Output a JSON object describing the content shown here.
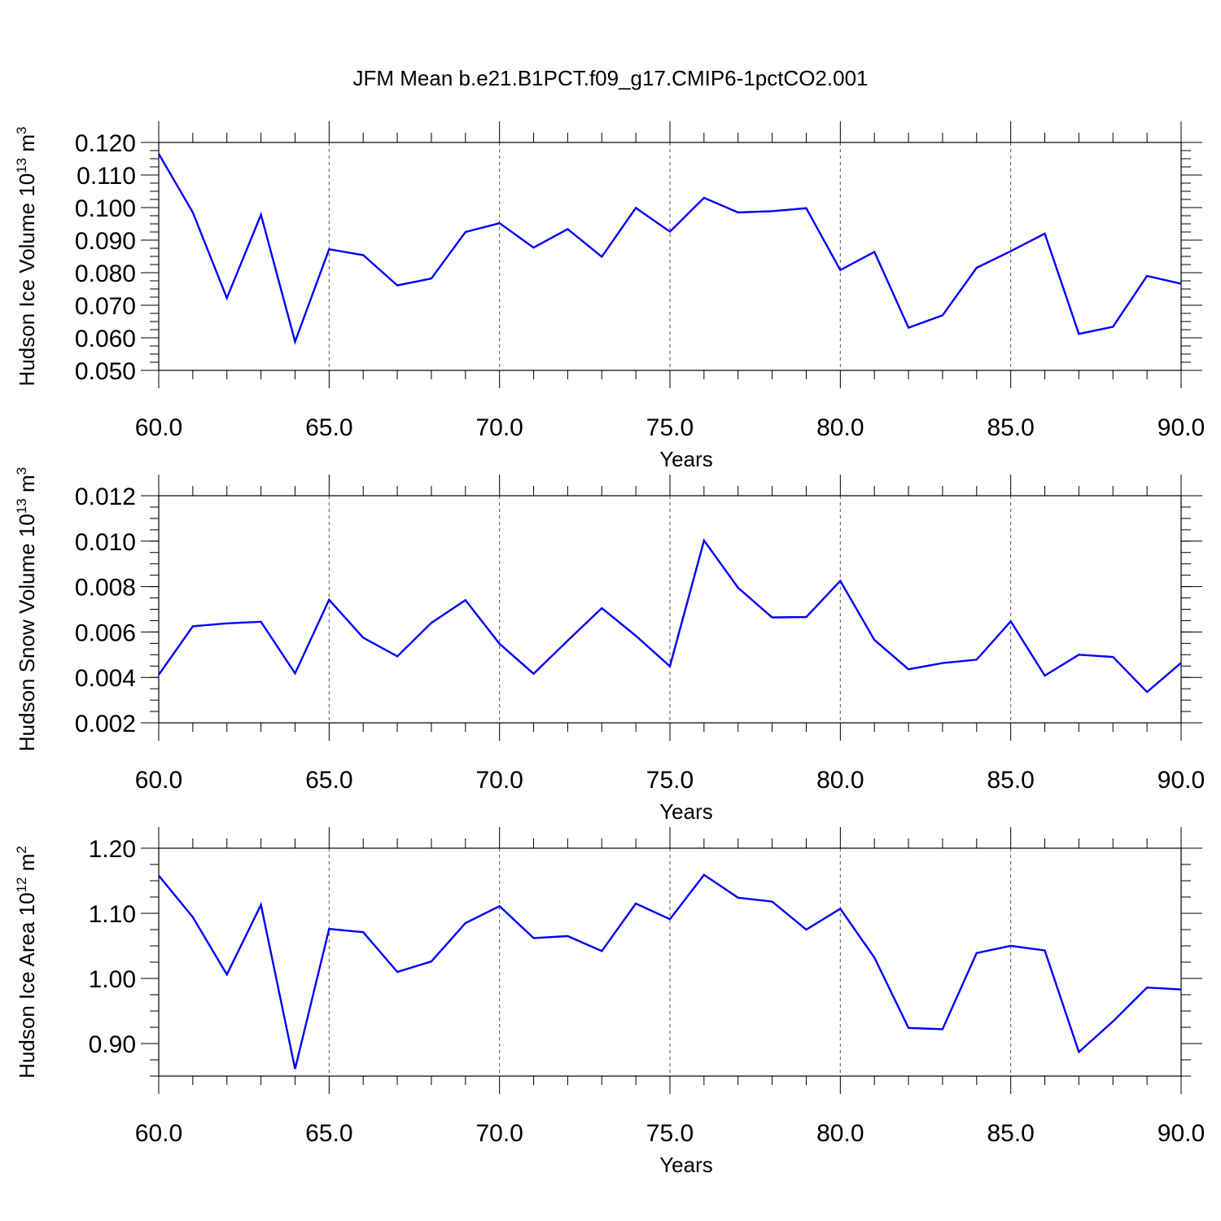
{
  "title": "JFM Mean b.e21.B1PCT.f09_g17.CMIP6-1pctCO2.001",
  "chart_data": [
    {
      "type": "line",
      "ylabel": "Hudson Ice Volume 10",
      "ylabel_exp": "13",
      "ylabel_unit": " m",
      "ylabel_unit_exp": "3",
      "xlabel": "Years",
      "xlim": [
        60,
        90
      ],
      "ylim": [
        0.05,
        0.12
      ],
      "xticks": [
        "60.0",
        "65.0",
        "70.0",
        "75.0",
        "80.0",
        "85.0",
        "90.0"
      ],
      "yticks": [
        "0.050",
        "0.060",
        "0.070",
        "0.080",
        "0.090",
        "0.100",
        "0.110",
        "0.120"
      ],
      "grid": "vertical dashed at major x ticks",
      "color": "#0000ff",
      "x": [
        60,
        61,
        62,
        63,
        64,
        65,
        66,
        67,
        68,
        69,
        70,
        71,
        72,
        73,
        74,
        75,
        76,
        77,
        78,
        79,
        80,
        81,
        82,
        83,
        84,
        85,
        86,
        87,
        88,
        89,
        90
      ],
      "values": [
        0.1165,
        0.0985,
        0.0722,
        0.0978,
        0.0588,
        0.0872,
        0.0854,
        0.0761,
        0.0782,
        0.0925,
        0.0952,
        0.0877,
        0.0934,
        0.0849,
        0.0999,
        0.0926,
        0.103,
        0.0985,
        0.0989,
        0.0998,
        0.0808,
        0.0864,
        0.0631,
        0.0669,
        0.0815,
        0.0866,
        0.092,
        0.0612,
        0.0634,
        0.079,
        0.0766
      ]
    },
    {
      "type": "line",
      "ylabel": "Hudson Snow Volume 10",
      "ylabel_exp": "13",
      "ylabel_unit": " m",
      "ylabel_unit_exp": "3",
      "xlabel": "Years",
      "xlim": [
        60,
        90
      ],
      "ylim": [
        0.002,
        0.012
      ],
      "xticks": [
        "60.0",
        "65.0",
        "70.0",
        "75.0",
        "80.0",
        "85.0",
        "90.0"
      ],
      "yticks": [
        "0.002",
        "0.004",
        "0.006",
        "0.008",
        "0.010",
        "0.012"
      ],
      "grid": "vertical dashed at major x ticks",
      "color": "#0000ff",
      "x": [
        60,
        61,
        62,
        63,
        64,
        65,
        66,
        67,
        68,
        69,
        70,
        71,
        72,
        73,
        74,
        75,
        76,
        77,
        78,
        79,
        80,
        81,
        82,
        83,
        84,
        85,
        86,
        87,
        88,
        89,
        90
      ],
      "values": [
        0.00412,
        0.00625,
        0.00638,
        0.00645,
        0.00418,
        0.00742,
        0.00575,
        0.00493,
        0.0064,
        0.0074,
        0.00548,
        0.00416,
        0.00562,
        0.00705,
        0.00583,
        0.00449,
        0.01003,
        0.00795,
        0.00664,
        0.00666,
        0.00825,
        0.00565,
        0.00436,
        0.00463,
        0.00478,
        0.00647,
        0.00408,
        0.005,
        0.0049,
        0.00336,
        0.00464
      ]
    },
    {
      "type": "line",
      "ylabel": "Hudson Ice Area 10",
      "ylabel_exp": "12",
      "ylabel_unit": " m",
      "ylabel_unit_exp": "2",
      "xlabel": "Years",
      "xlim": [
        60,
        90
      ],
      "ylim": [
        0.85,
        1.2
      ],
      "xticks": [
        "60.0",
        "65.0",
        "70.0",
        "75.0",
        "80.0",
        "85.0",
        "90.0"
      ],
      "yticks": [
        "0.90",
        "1.00",
        "1.10",
        "1.20"
      ],
      "grid": "vertical dashed at major x ticks",
      "color": "#0000ff",
      "x": [
        60,
        61,
        62,
        63,
        64,
        65,
        66,
        67,
        68,
        69,
        70,
        71,
        72,
        73,
        74,
        75,
        76,
        77,
        78,
        79,
        80,
        81,
        82,
        83,
        84,
        85,
        86,
        87,
        88,
        89,
        90
      ],
      "values": [
        1.158,
        1.094,
        1.006,
        1.113,
        0.861,
        1.076,
        1.071,
        1.01,
        1.026,
        1.085,
        1.111,
        1.062,
        1.065,
        1.042,
        1.115,
        1.091,
        1.159,
        1.124,
        1.118,
        1.075,
        1.107,
        1.032,
        0.924,
        0.922,
        1.039,
        1.05,
        1.043,
        0.887,
        0.934,
        0.986,
        0.983
      ]
    }
  ]
}
